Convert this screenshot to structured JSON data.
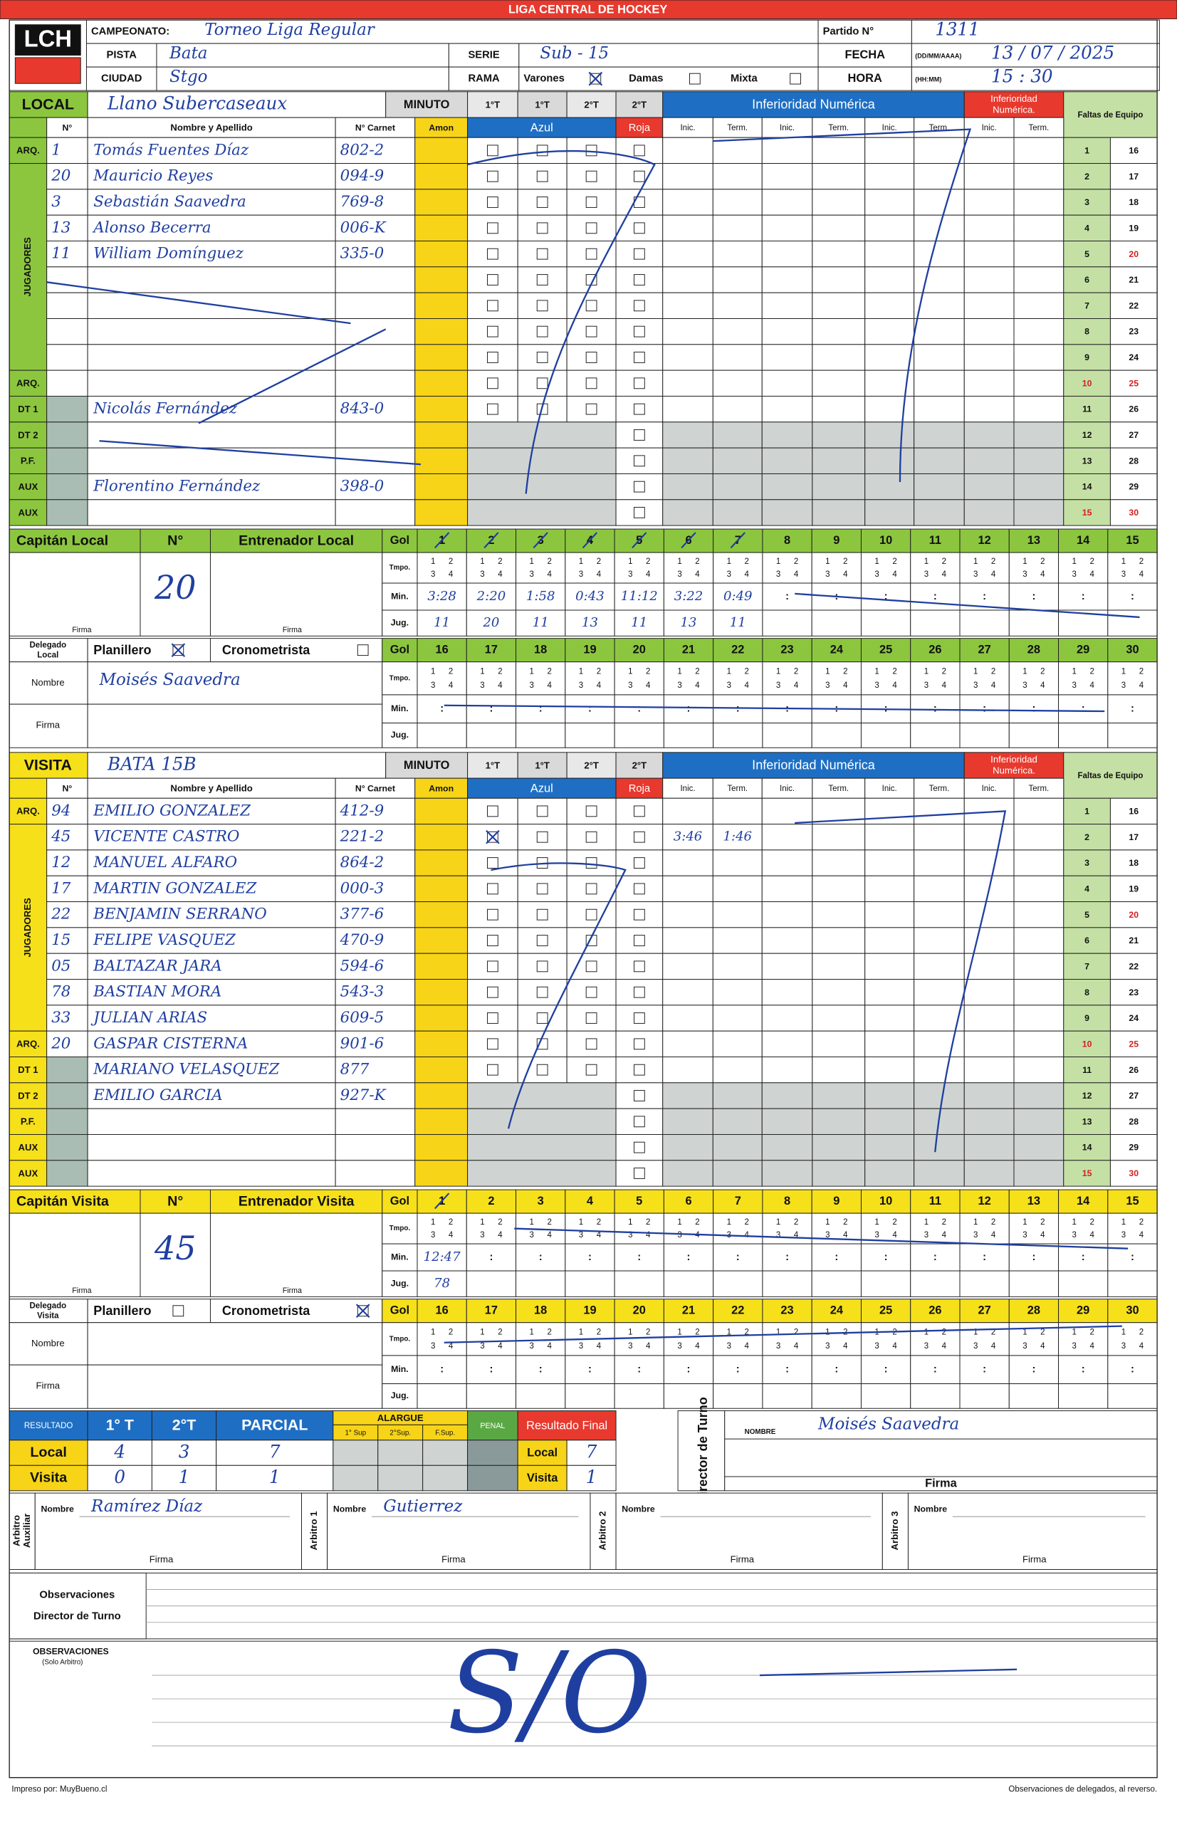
{
  "header": {
    "league": "LIGA CENTRAL DE HOCKEY",
    "logo": "LCH",
    "campeonato_label": "CAMPEONATO:",
    "campeonato": "Torneo Liga Regular",
    "pista_label": "PISTA",
    "pista": "Bata",
    "ciudad_label": "CIUDAD",
    "ciudad": "Stgo",
    "serie_label": "SERIE",
    "serie": "Sub - 15",
    "rama_label": "RAMA",
    "rama_options": [
      {
        "label": "Varones",
        "checked": true
      },
      {
        "label": "Damas",
        "checked": false
      },
      {
        "label": "Mixta",
        "checked": false
      }
    ],
    "partido_label": "Partido N°",
    "partido": "1311",
    "fecha_label": "FECHA",
    "fecha_format": "(DD/MM/AAAA)",
    "fecha": "13 / 07 / 2025",
    "hora_label": "HORA",
    "hora_format": "(HH:MM)",
    "hora": "15 : 30"
  },
  "form": {
    "minuto": "MINUTO",
    "periods": [
      "1°T",
      "1°T",
      "2°T",
      "2°T"
    ],
    "amon": "Amon",
    "azul": "Azul",
    "roja": "Roja",
    "inferioridad": "Inferioridad Numérica",
    "inferioridad_red": [
      "Inferioridad",
      "Numérica."
    ],
    "inic": "Inic.",
    "term": "Term.",
    "faltas": "Faltas de Equipo",
    "col_num": "N°",
    "col_name": "Nombre y Apellido",
    "col_carnet": "N° Carnet",
    "jugadores": "JUGADORES",
    "row_roles": [
      "ARQ.",
      null,
      null,
      null,
      null,
      null,
      null,
      null,
      null,
      "ARQ.",
      "DT 1",
      "DT 2",
      "P.F.",
      "AUX",
      "AUX"
    ],
    "faltas_numbers": [
      1,
      2,
      3,
      4,
      5,
      6,
      7,
      8,
      9,
      10,
      11,
      12,
      13,
      14,
      15,
      16,
      17,
      18,
      19,
      20,
      21,
      22,
      23,
      24,
      25,
      26,
      27,
      28,
      29,
      30
    ],
    "gol": "Gol",
    "goal_numbers": [
      1,
      2,
      3,
      4,
      5,
      6,
      7,
      8,
      9,
      10,
      11,
      12,
      13,
      14,
      15,
      16,
      17,
      18,
      19,
      20,
      21,
      22,
      23,
      24,
      25,
      26,
      27,
      28,
      29,
      30
    ],
    "tmpo": "Tmpo.",
    "min": "Min.",
    "jug": "Jug.",
    "quarters": [
      1,
      2,
      3,
      4
    ],
    "min_sep": ":",
    "num": "N°",
    "firma": "Firma",
    "planillero": "Planillero",
    "cronometrista": "Cronometrista",
    "nombre": "Nombre"
  },
  "teams": [
    {
      "side": "LOCAL",
      "color": "#8cc63f",
      "name": "Llano Subercaseaux",
      "captain_label": "Capitán Local",
      "captain_number": "20",
      "coach_label": "Entrenador Local",
      "delegado_label": [
        "Delegado",
        "Local"
      ],
      "planillero_checked": true,
      "cronometrista_checked": false,
      "delegado_name": "Moisés Saavedra",
      "players": [
        {
          "num": "1",
          "name": "Tomás Fuentes Díaz",
          "carnet": "802-2"
        },
        {
          "num": "20",
          "name": "Mauricio Reyes",
          "carnet": "094-9"
        },
        {
          "num": "3",
          "name": "Sebastián Saavedra",
          "carnet": "769-8"
        },
        {
          "num": "13",
          "name": "Alonso Becerra",
          "carnet": "006-K"
        },
        {
          "num": "11",
          "name": "William Domínguez",
          "carnet": "335-0"
        },
        null,
        null,
        null,
        null,
        null,
        {
          "num": null,
          "name": "Nicolás Fernández",
          "carnet": "843-0"
        },
        null,
        null,
        {
          "num": null,
          "name": "Florentino Fernández",
          "carnet": "398-0"
        },
        null
      ],
      "goals": [
        {
          "min": "3:28",
          "jug": "11"
        },
        {
          "min": "2:20",
          "jug": "20"
        },
        {
          "min": "1:58",
          "jug": "11"
        },
        {
          "min": "0:43",
          "jug": "13"
        },
        {
          "min": "11:12",
          "jug": "11"
        },
        {
          "min": "3:22",
          "jug": "13"
        },
        {
          "min": "0:49",
          "jug": "11"
        }
      ]
    },
    {
      "side": "VISITA",
      "color": "#f6e01a",
      "name": "BATA 15B",
      "captain_label": "Capitán Visita",
      "captain_number": "45",
      "coach_label": "Entrenador Visita",
      "delegado_label": [
        "Delegado",
        "Visita"
      ],
      "planillero_checked": false,
      "cronometrista_checked": true,
      "delegado_name": null,
      "players": [
        {
          "num": "94",
          "name": "EMILIO GONZALEZ",
          "carnet": "412-9"
        },
        {
          "num": "45",
          "name": "VICENTE CASTRO",
          "carnet": "221-2",
          "azul_checked": true,
          "inferioridad": [
            "3:46",
            "1:46"
          ]
        },
        {
          "num": "12",
          "name": "MANUEL ALFARO",
          "carnet": "864-2"
        },
        {
          "num": "17",
          "name": "MARTIN GONZALEZ",
          "carnet": "000-3"
        },
        {
          "num": "22",
          "name": "BENJAMIN SERRANO",
          "carnet": "377-6"
        },
        {
          "num": "15",
          "name": "FELIPE VASQUEZ",
          "carnet": "470-9"
        },
        {
          "num": "05",
          "name": "BALTAZAR JARA",
          "carnet": "594-6"
        },
        {
          "num": "78",
          "name": "BASTIAN MORA",
          "carnet": "543-3"
        },
        {
          "num": "33",
          "name": "JULIAN ARIAS",
          "carnet": "609-5"
        },
        {
          "num": "20",
          "name": "GASPAR CISTERNA",
          "carnet": "901-6"
        },
        {
          "num": null,
          "name": "MARIANO VELASQUEZ",
          "carnet": "877"
        },
        {
          "num": null,
          "name": "EMILIO GARCIA",
          "carnet": "927-K"
        },
        null,
        null,
        null
      ],
      "goals": [
        {
          "min": "12:47",
          "jug": "78"
        }
      ]
    }
  ],
  "results": {
    "label": "RESULTADO",
    "cols": [
      "1° T",
      "2°T",
      "PARCIAL"
    ],
    "alargue": "ALARGUE",
    "alargue_cols": [
      "1° Sup",
      "2°Sup.",
      "F.Sup."
    ],
    "penal": "PENAL",
    "final_label": "Resultado Final",
    "rows": [
      {
        "team": "Local",
        "scores": [
          4,
          3,
          7
        ],
        "final": 7
      },
      {
        "team": "Visita",
        "scores": [
          0,
          1,
          1
        ],
        "final": 1
      }
    ]
  },
  "director": {
    "label": "Director de Turno",
    "nombre_label": "NOMBRE",
    "nombre": "Moisés Saavedra",
    "firma_label": "Firma"
  },
  "referees": [
    {
      "role": [
        "Arbitro",
        "Auxiliar"
      ],
      "nombre_label": "Nombre",
      "nombre": "Ramírez Díaz",
      "firma_label": "Firma"
    },
    {
      "role": [
        "Arbitro 1"
      ],
      "nombre_label": "Nombre",
      "nombre": "Gutierrez",
      "firma_label": "Firma"
    },
    {
      "role": [
        "Arbitro 2"
      ],
      "nombre_label": "Nombre",
      "nombre": null,
      "firma_label": "Firma"
    },
    {
      "role": [
        "Arbitro 3"
      ],
      "nombre_label": "Nombre",
      "nombre": null,
      "firma_label": "Firma"
    }
  ],
  "observations": {
    "director_label": [
      "Observaciones",
      "Director de Turno"
    ],
    "arbitro_label": "OBSERVACIONES",
    "arbitro_sub": "(Solo Arbitro)",
    "arbitro_text": "S/O"
  },
  "footer": {
    "left": "Impreso por: MuyBueno.cl",
    "right": "Observaciones de delegados, al reverso."
  }
}
